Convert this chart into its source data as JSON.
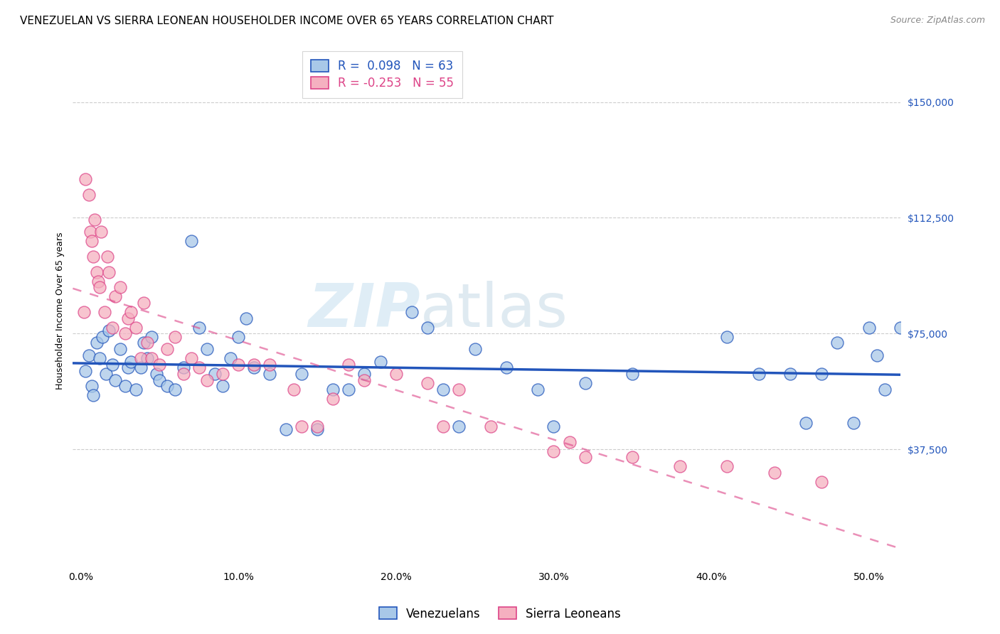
{
  "title": "VENEZUELAN VS SIERRA LEONEAN HOUSEHOLDER INCOME OVER 65 YEARS CORRELATION CHART",
  "source": "Source: ZipAtlas.com",
  "ylabel": "Householder Income Over 65 years",
  "xlabel_ticks": [
    "0.0%",
    "10.0%",
    "20.0%",
    "30.0%",
    "40.0%",
    "50.0%"
  ],
  "xlabel_vals": [
    0,
    10,
    20,
    30,
    40,
    50
  ],
  "ytick_labels": [
    "$37,500",
    "$75,000",
    "$112,500",
    "$150,000"
  ],
  "ytick_vals": [
    37500,
    75000,
    112500,
    150000
  ],
  "ymin": 0,
  "ymax": 165000,
  "xmin": -0.5,
  "xmax": 52,
  "r_venezuelan": 0.098,
  "n_venezuelan": 63,
  "r_sierra": -0.253,
  "n_sierra": 55,
  "venezuelan_color": "#a8c8e8",
  "sierra_color": "#f5b0c0",
  "venezuelan_line_color": "#2255bb",
  "sierra_line_color": "#dd4488",
  "watermark_zip": "ZIP",
  "watermark_atlas": "atlas",
  "legend_venezuelans": "Venezuelans",
  "legend_sierra": "Sierra Leoneans",
  "venezuelan_x": [
    0.3,
    0.5,
    0.7,
    0.8,
    1.0,
    1.2,
    1.4,
    1.6,
    1.8,
    2.0,
    2.2,
    2.5,
    2.8,
    3.0,
    3.2,
    3.5,
    3.8,
    4.0,
    4.2,
    4.5,
    4.8,
    5.0,
    5.5,
    6.0,
    6.5,
    7.0,
    7.5,
    8.0,
    8.5,
    9.0,
    9.5,
    10.0,
    10.5,
    11.0,
    12.0,
    13.0,
    14.0,
    15.0,
    16.0,
    17.0,
    18.0,
    19.0,
    21.0,
    22.0,
    23.0,
    24.0,
    25.0,
    27.0,
    29.0,
    30.0,
    32.0,
    35.0,
    41.0,
    43.0,
    45.0,
    46.0,
    47.0,
    48.0,
    49.0,
    50.0,
    50.5,
    51.0,
    52.0
  ],
  "venezuelan_y": [
    63000,
    68000,
    58000,
    55000,
    72000,
    67000,
    74000,
    62000,
    76000,
    65000,
    60000,
    70000,
    58000,
    64000,
    66000,
    57000,
    64000,
    72000,
    67000,
    74000,
    62000,
    60000,
    58000,
    57000,
    64000,
    105000,
    77000,
    70000,
    62000,
    58000,
    67000,
    74000,
    80000,
    64000,
    62000,
    44000,
    62000,
    44000,
    57000,
    57000,
    62000,
    66000,
    82000,
    77000,
    57000,
    45000,
    70000,
    64000,
    57000,
    45000,
    59000,
    62000,
    74000,
    62000,
    62000,
    46000,
    62000,
    72000,
    46000,
    77000,
    68000,
    57000,
    77000
  ],
  "sierra_x": [
    0.2,
    0.3,
    0.5,
    0.6,
    0.7,
    0.8,
    0.9,
    1.0,
    1.1,
    1.2,
    1.3,
    1.5,
    1.7,
    1.8,
    2.0,
    2.2,
    2.5,
    2.8,
    3.0,
    3.2,
    3.5,
    3.8,
    4.0,
    4.2,
    4.5,
    5.0,
    5.5,
    6.0,
    6.5,
    7.0,
    7.5,
    8.0,
    9.0,
    10.0,
    11.0,
    12.0,
    13.5,
    14.0,
    15.0,
    16.0,
    17.0,
    18.0,
    20.0,
    22.0,
    23.0,
    24.0,
    26.0,
    30.0,
    31.0,
    32.0,
    35.0,
    38.0,
    41.0,
    44.0,
    47.0
  ],
  "sierra_y": [
    82000,
    125000,
    120000,
    108000,
    105000,
    100000,
    112000,
    95000,
    92000,
    90000,
    108000,
    82000,
    100000,
    95000,
    77000,
    87000,
    90000,
    75000,
    80000,
    82000,
    77000,
    67000,
    85000,
    72000,
    67000,
    65000,
    70000,
    74000,
    62000,
    67000,
    64000,
    60000,
    62000,
    65000,
    65000,
    65000,
    57000,
    45000,
    45000,
    54000,
    65000,
    60000,
    62000,
    59000,
    45000,
    57000,
    45000,
    37000,
    40000,
    35000,
    35000,
    32000,
    32000,
    30000,
    27000
  ],
  "title_fontsize": 11,
  "axis_label_fontsize": 9,
  "tick_fontsize": 10,
  "legend_fontsize": 12
}
